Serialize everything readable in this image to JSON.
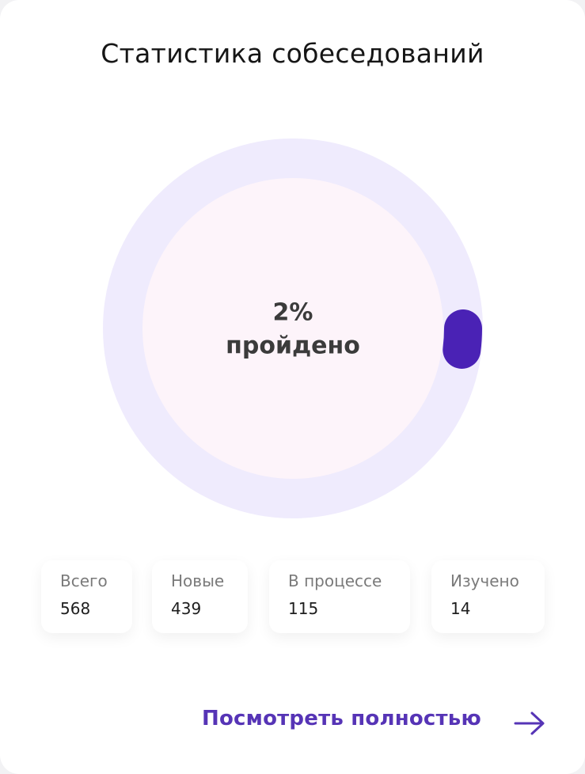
{
  "header": {
    "title": "Статистика собеседований"
  },
  "progress": {
    "value": 2,
    "value_label": "2%",
    "caption": "пройдено"
  },
  "stats": [
    {
      "label": "Всего",
      "value": 568
    },
    {
      "label": "Новые",
      "value": 439
    },
    {
      "label": "В процессе",
      "value": 115
    },
    {
      "label": "Изучено",
      "value": 14
    }
  ],
  "footer": {
    "link": "Посмотреть полностью"
  }
}
